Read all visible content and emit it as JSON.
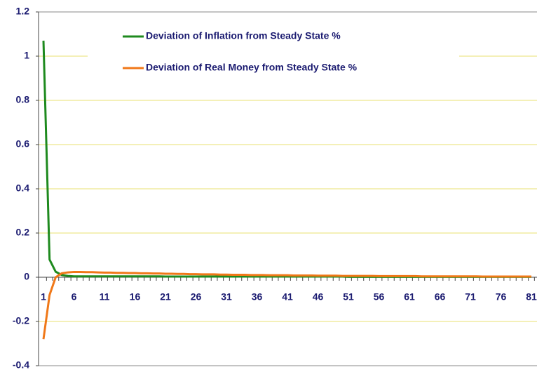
{
  "chart_data": {
    "type": "line",
    "categories": [
      "1",
      null,
      null,
      null,
      null,
      "6",
      null,
      null,
      null,
      null,
      "11",
      null,
      null,
      null,
      null,
      "16",
      null,
      null,
      null,
      null,
      "21",
      null,
      null,
      null,
      null,
      "26",
      null,
      null,
      null,
      null,
      "31",
      null,
      null,
      null,
      null,
      "36",
      null,
      null,
      null,
      null,
      "41",
      null,
      null,
      null,
      null,
      "46",
      null,
      null,
      null,
      null,
      "51",
      null,
      null,
      null,
      null,
      "56",
      null,
      null,
      null,
      null,
      "61",
      null,
      null,
      null,
      null,
      "66",
      null,
      null,
      null,
      null,
      "71",
      null,
      null,
      null,
      null,
      "76",
      null,
      null,
      null,
      null,
      "81"
    ],
    "series": [
      {
        "name": "Deviation of Inflation from Steady State %",
        "color": "#1e8a1e",
        "values": [
          1.07,
          0.08,
          0.025,
          0.01,
          0.006,
          0.004,
          0.004,
          0.004,
          0.004,
          0.004,
          0.004,
          0.004,
          0.004,
          0.004,
          0.004,
          0.004,
          0.004,
          0.004,
          0.004,
          0.004,
          0.003,
          0.003,
          0.003,
          0.003,
          0.003,
          0.003,
          0.003,
          0.003,
          0.003,
          0.003,
          0.003,
          0.003,
          0.003,
          0.003,
          0.003,
          0.003,
          0.003,
          0.003,
          0.003,
          0.003,
          0.003,
          0.003,
          0.003,
          0.003,
          0.003,
          0.003,
          0.003,
          0.003,
          0.003,
          0.003,
          0.002,
          0.002,
          0.002,
          0.002,
          0.002,
          0.002,
          0.002,
          0.002,
          0.002,
          0.002,
          0.002,
          0.002,
          0.002,
          0.002,
          0.002,
          0.002,
          0.002,
          0.002,
          0.002,
          0.002,
          0.002,
          0.002,
          0.002,
          0.002,
          0.002,
          0.002,
          0.002,
          0.002,
          0.002,
          0.002,
          0.002
        ]
      },
      {
        "name": "Deviation of Real Money from Steady State %",
        "color": "#f07818",
        "values": [
          -0.28,
          -0.08,
          0.0,
          0.018,
          0.022,
          0.024,
          0.024,
          0.023,
          0.023,
          0.022,
          0.021,
          0.021,
          0.02,
          0.02,
          0.019,
          0.019,
          0.018,
          0.018,
          0.017,
          0.017,
          0.016,
          0.016,
          0.015,
          0.015,
          0.014,
          0.014,
          0.013,
          0.013,
          0.013,
          0.012,
          0.012,
          0.011,
          0.011,
          0.011,
          0.01,
          0.01,
          0.01,
          0.009,
          0.009,
          0.009,
          0.009,
          0.008,
          0.008,
          0.008,
          0.008,
          0.007,
          0.007,
          0.007,
          0.007,
          0.006,
          0.006,
          0.006,
          0.006,
          0.006,
          0.006,
          0.005,
          0.005,
          0.005,
          0.005,
          0.005,
          0.005,
          0.005,
          0.004,
          0.004,
          0.004,
          0.004,
          0.004,
          0.004,
          0.004,
          0.004,
          0.004,
          0.004,
          0.003,
          0.003,
          0.003,
          0.003,
          0.003,
          0.003,
          0.003,
          0.003,
          0.003
        ]
      }
    ],
    "ylim": [
      -0.4,
      1.2
    ],
    "yticks": [
      -0.4,
      -0.2,
      0,
      0.2,
      0.4,
      0.6,
      0.8,
      1,
      1.2
    ],
    "grid": true,
    "grid_color": "#e8e070"
  }
}
